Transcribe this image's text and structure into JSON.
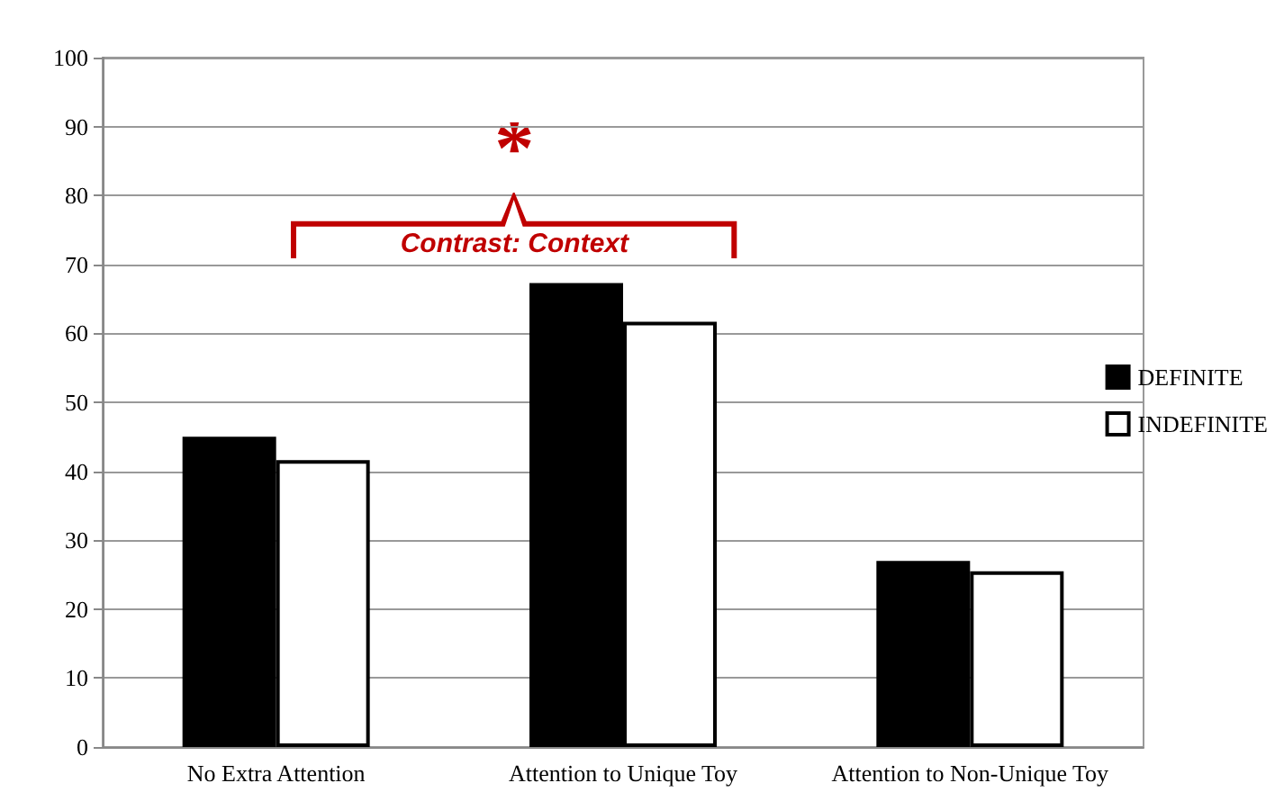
{
  "chart_data": {
    "type": "bar",
    "categories": [
      "No Extra Attention",
      "Attention to Unique Toy",
      "Attention to Non-Unique Toy"
    ],
    "series": [
      {
        "name": "DEFINITE",
        "color": "#000000",
        "values": [
          45,
          67.3,
          27
        ]
      },
      {
        "name": "INDEFINITE",
        "color": "#ffffff",
        "values": [
          41.6,
          61.7,
          25.5
        ]
      }
    ],
    "ylim": [
      0,
      100
    ],
    "yticks": [
      0,
      10,
      20,
      30,
      40,
      50,
      60,
      70,
      80,
      90,
      100
    ],
    "grid": "y",
    "legend": "right",
    "annotations": [
      "*",
      "Contrast: Context"
    ]
  }
}
